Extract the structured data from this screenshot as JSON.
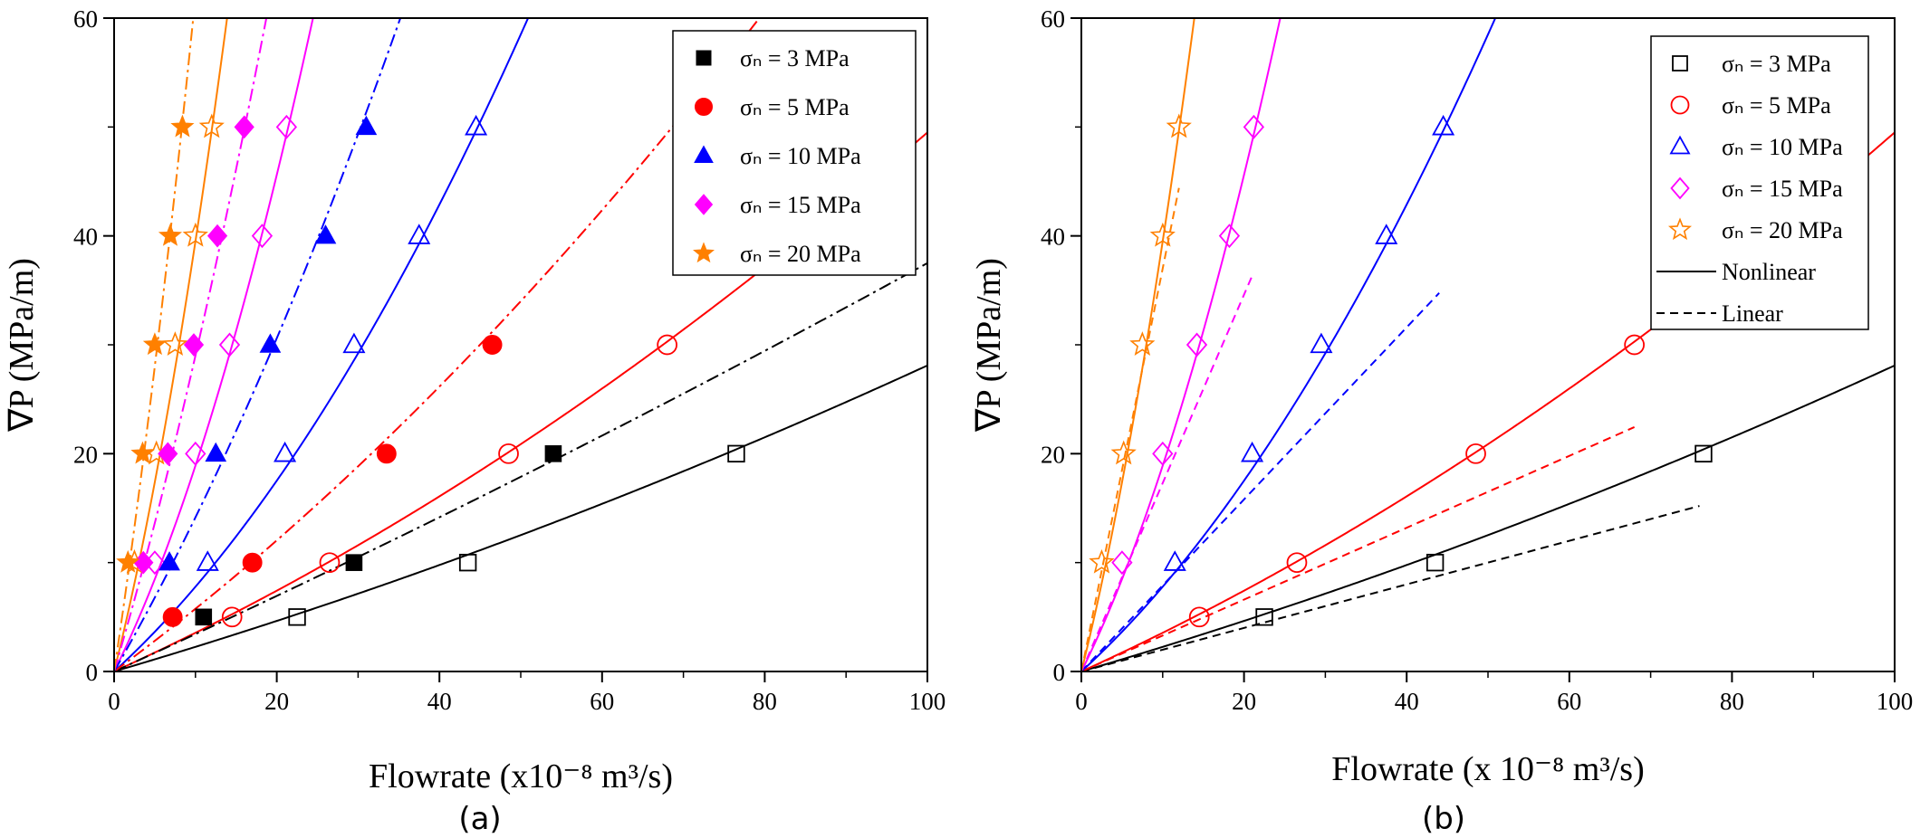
{
  "figure": {
    "panel_labels": [
      "(a)",
      "(b)"
    ]
  },
  "chart_data": [
    {
      "type": "scatter",
      "panel": "(a)",
      "xlabel": "Flowrate (x10⁻⁸ m³/s)",
      "ylabel": "∇P (MPa/m)",
      "xlim": [
        0,
        100
      ],
      "ylim": [
        0,
        60
      ],
      "x_ticks": [
        0,
        20,
        40,
        60,
        80,
        100
      ],
      "y_ticks": [
        0,
        20,
        40,
        60
      ],
      "grid": false,
      "legend_position": "top-right",
      "legend": [
        {
          "label": "σₙ = 3 MPa",
          "marker": "filled-square",
          "color": "#000000"
        },
        {
          "label": "σₙ = 5 MPa",
          "marker": "filled-circle",
          "color": "#ff0000"
        },
        {
          "label": "σₙ = 10 MPa",
          "marker": "filled-triangle",
          "color": "#0000ff"
        },
        {
          "label": "σₙ = 15 MPa",
          "marker": "filled-diamond",
          "color": "#ff00ff"
        },
        {
          "label": "σₙ = 20 MPa",
          "marker": "filled-star",
          "color": "#ff8000"
        }
      ],
      "series": [
        {
          "name": "σₙ = 3 MPa",
          "color": "#000000",
          "style": "hollow-square",
          "x": [
            22.5,
            43.5,
            76.5
          ],
          "y": [
            5,
            10,
            20
          ]
        },
        {
          "name": "σₙ = 5 MPa",
          "color": "#ff0000",
          "style": "hollow-circle",
          "x": [
            14.5,
            26.5,
            48.5,
            68
          ],
          "y": [
            5,
            10,
            20,
            30
          ]
        },
        {
          "name": "σₙ = 10 MPa",
          "color": "#0000ff",
          "style": "hollow-triangle",
          "x": [
            11.5,
            21,
            29.5,
            37.5,
            44.5
          ],
          "y": [
            10,
            20,
            30,
            40,
            50
          ]
        },
        {
          "name": "σₙ = 15 MPa",
          "color": "#ff00ff",
          "style": "hollow-diamond",
          "x": [
            5,
            10,
            14.2,
            18.2,
            21.2
          ],
          "y": [
            10,
            20,
            30,
            40,
            50
          ]
        },
        {
          "name": "σₙ = 20 MPa",
          "color": "#ff8000",
          "style": "hollow-star",
          "x": [
            2.5,
            5.2,
            7.5,
            10,
            12
          ],
          "y": [
            10,
            20,
            30,
            40,
            50
          ]
        },
        {
          "name": "σₙ = 3 MPa",
          "color": "#000000",
          "style": "filled-square",
          "x": [
            11,
            29.5,
            54
          ],
          "y": [
            5,
            10,
            20
          ]
        },
        {
          "name": "σₙ = 5 MPa",
          "color": "#ff0000",
          "style": "filled-circle",
          "x": [
            7.2,
            17,
            33.5,
            46.5
          ],
          "y": [
            5,
            10,
            20,
            30
          ]
        },
        {
          "name": "σₙ = 10 MPa",
          "color": "#0000ff",
          "style": "filled-triangle",
          "x": [
            6.8,
            12.5,
            19.2,
            26,
            31
          ],
          "y": [
            10,
            20,
            30,
            40,
            50
          ]
        },
        {
          "name": "σₙ = 15 MPa",
          "color": "#ff00ff",
          "style": "filled-diamond",
          "x": [
            3.6,
            6.6,
            9.8,
            12.7,
            16
          ],
          "y": [
            10,
            20,
            30,
            40,
            50
          ]
        },
        {
          "name": "σₙ = 20 MPa",
          "color": "#ff8000",
          "style": "filled-star",
          "x": [
            1.7,
            3.5,
            5,
            6.9,
            8.4
          ],
          "y": [
            10,
            20,
            30,
            40,
            50
          ]
        }
      ],
      "fit_curves": [
        {
          "color": "#000000",
          "dash": "solid",
          "a": 0.22,
          "b": 0.00061
        },
        {
          "color": "#ff0000",
          "dash": "solid",
          "a": 0.34,
          "b": 0.00155
        },
        {
          "color": "#0000ff",
          "dash": "solid",
          "a": 0.68,
          "b": 0.0098
        },
        {
          "color": "#ff00ff",
          "dash": "solid",
          "a": 1.5,
          "b": 0.039
        },
        {
          "color": "#ff8000",
          "dash": "solid",
          "a": 3.0,
          "b": 0.095
        },
        {
          "color": "#000000",
          "dash": "dash-dot",
          "a": 0.34,
          "b": 0.00035
        },
        {
          "color": "#ff0000",
          "dash": "dash-dot",
          "a": 0.55,
          "b": 0.0026
        },
        {
          "color": "#0000ff",
          "dash": "dash-dot",
          "a": 1.3,
          "b": 0.0115
        },
        {
          "color": "#ff00ff",
          "dash": "dash-dot",
          "a": 2.55,
          "b": 0.035
        },
        {
          "color": "#ff8000",
          "dash": "dash-dot",
          "a": 5.0,
          "b": 0.12
        }
      ]
    },
    {
      "type": "scatter",
      "panel": "(b)",
      "xlabel": "Flowrate (x 10⁻⁸ m³/s)",
      "ylabel": "∇P (MPa/m)",
      "xlim": [
        0,
        100
      ],
      "ylim": [
        0,
        60
      ],
      "x_ticks": [
        0,
        20,
        40,
        60,
        80,
        100
      ],
      "y_ticks": [
        0,
        20,
        40,
        60
      ],
      "grid": false,
      "legend_position": "top-right",
      "legend": [
        {
          "label": "σₙ = 3 MPa",
          "marker": "hollow-square",
          "color": "#000000"
        },
        {
          "label": "σₙ = 5 MPa",
          "marker": "hollow-circle",
          "color": "#ff0000"
        },
        {
          "label": "σₙ = 10 MPa",
          "marker": "hollow-triangle",
          "color": "#0000ff"
        },
        {
          "label": "σₙ = 15 MPa",
          "marker": "hollow-diamond",
          "color": "#ff00ff"
        },
        {
          "label": "σₙ = 20 MPa",
          "marker": "hollow-star",
          "color": "#ff8000"
        },
        {
          "label": "Nonlinear",
          "marker": "solid-line",
          "color": "#000000"
        },
        {
          "label": "Linear",
          "marker": "dashed-line",
          "color": "#000000"
        }
      ],
      "series": [
        {
          "name": "σₙ = 3 MPa",
          "color": "#000000",
          "style": "hollow-square",
          "x": [
            22.5,
            43.5,
            76.5
          ],
          "y": [
            5,
            10,
            20
          ]
        },
        {
          "name": "σₙ = 5 MPa",
          "color": "#ff0000",
          "style": "hollow-circle",
          "x": [
            14.5,
            26.5,
            48.5,
            68
          ],
          "y": [
            5,
            10,
            20,
            30
          ]
        },
        {
          "name": "σₙ = 10 MPa",
          "color": "#0000ff",
          "style": "hollow-triangle",
          "x": [
            11.5,
            21,
            29.5,
            37.5,
            44.5
          ],
          "y": [
            10,
            20,
            30,
            40,
            50
          ]
        },
        {
          "name": "σₙ = 15 MPa",
          "color": "#ff00ff",
          "style": "hollow-diamond",
          "x": [
            5,
            10,
            14.2,
            18.2,
            21.2
          ],
          "y": [
            10,
            20,
            30,
            40,
            50
          ]
        },
        {
          "name": "σₙ = 20 MPa",
          "color": "#ff8000",
          "style": "hollow-star",
          "x": [
            2.5,
            5.2,
            7.5,
            10,
            12
          ],
          "y": [
            10,
            20,
            30,
            40,
            50
          ]
        }
      ],
      "fit_curves": [
        {
          "color": "#000000",
          "dash": "solid",
          "a": 0.22,
          "b": 0.00061
        },
        {
          "color": "#ff0000",
          "dash": "solid",
          "a": 0.34,
          "b": 0.00155
        },
        {
          "color": "#0000ff",
          "dash": "solid",
          "a": 0.68,
          "b": 0.0098
        },
        {
          "color": "#ff00ff",
          "dash": "solid",
          "a": 1.5,
          "b": 0.039
        },
        {
          "color": "#ff8000",
          "dash": "solid",
          "a": 3.0,
          "b": 0.095
        }
      ],
      "linear_fits": [
        {
          "color": "#000000",
          "slope": 0.2,
          "x_end": 76
        },
        {
          "color": "#ff0000",
          "slope": 0.33,
          "x_end": 68
        },
        {
          "color": "#0000ff",
          "slope": 0.79,
          "x_end": 44
        },
        {
          "color": "#ff00ff",
          "slope": 1.73,
          "x_end": 21
        },
        {
          "color": "#ff8000",
          "slope": 3.7,
          "x_end": 12
        }
      ]
    }
  ]
}
